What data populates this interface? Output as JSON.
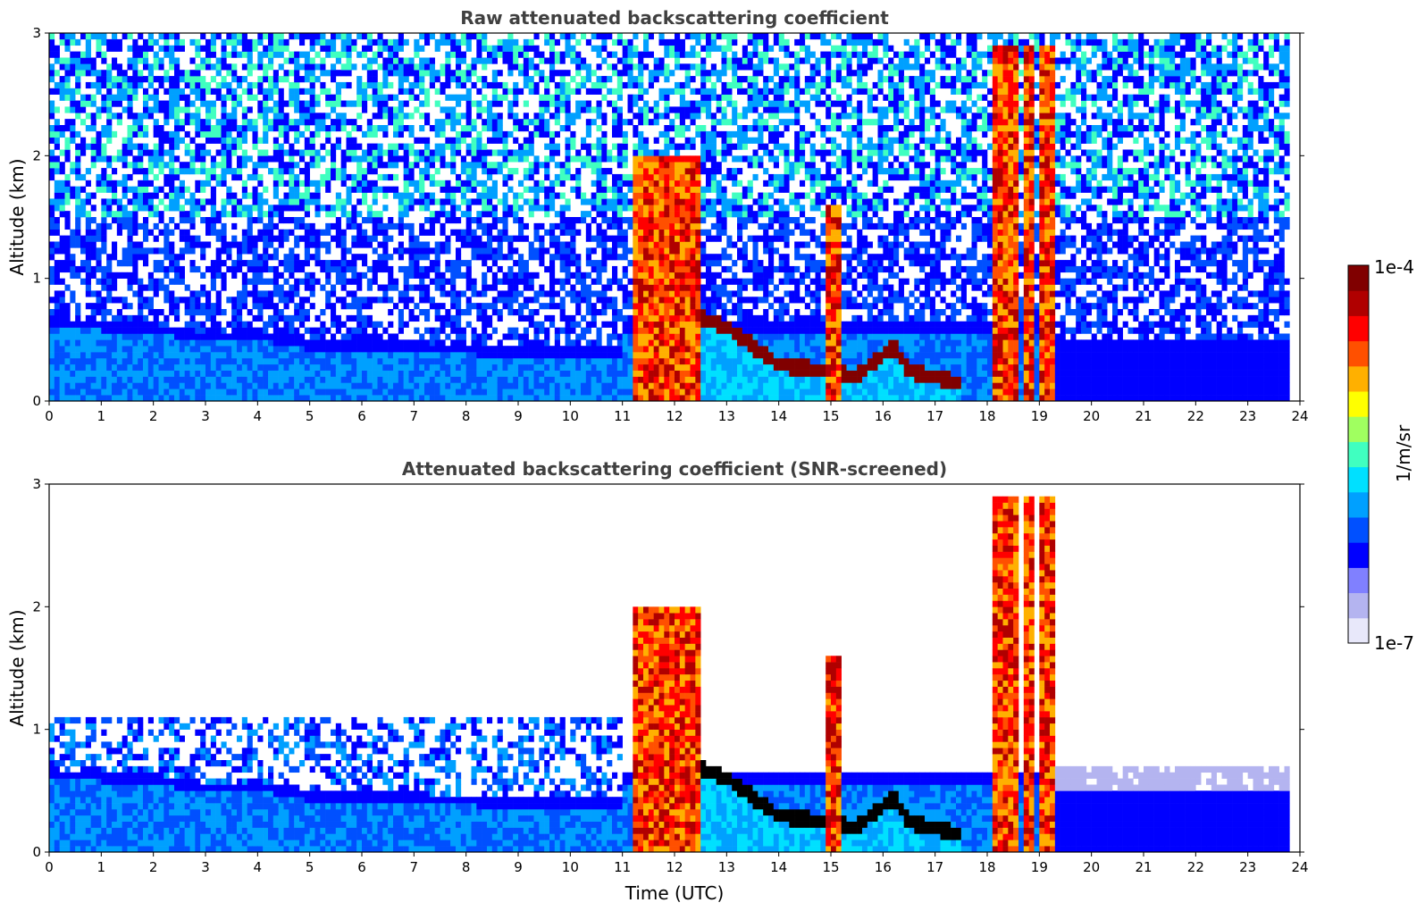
{
  "chart_data": [
    {
      "type": "heatmap",
      "title": "Raw attenuated backscattering coefficient",
      "xlabel": "",
      "ylabel": "Altitude (km)",
      "xlim": [
        0,
        24
      ],
      "ylim": [
        0,
        3
      ],
      "xticks": [
        "0",
        "1",
        "2",
        "3",
        "4",
        "5",
        "6",
        "7",
        "8",
        "9",
        "10",
        "11",
        "12",
        "13",
        "14",
        "15",
        "16",
        "17",
        "18",
        "19",
        "20",
        "21",
        "22",
        "23",
        "24"
      ],
      "yticks": [
        "0",
        "1",
        "2",
        "3"
      ],
      "screened": false
    },
    {
      "type": "heatmap",
      "title": "Attenuated backscattering coefficient (SNR-screened)",
      "xlabel": "Time (UTC)",
      "ylabel": "Altitude (km)",
      "xlim": [
        0,
        24
      ],
      "ylim": [
        0,
        3
      ],
      "xticks": [
        "0",
        "1",
        "2",
        "3",
        "4",
        "5",
        "6",
        "7",
        "8",
        "9",
        "10",
        "11",
        "12",
        "13",
        "14",
        "15",
        "16",
        "17",
        "18",
        "19",
        "20",
        "21",
        "22",
        "23",
        "24"
      ],
      "yticks": [
        "0",
        "1",
        "2",
        "3"
      ],
      "screened": true
    }
  ],
  "colorbar": {
    "max_label": "1e-4",
    "min_label": "1e-7",
    "unit_label": "1/m/sr",
    "colors": [
      "#e8e8fa",
      "#b4b4f0",
      "#8080ff",
      "#0000ff",
      "#0050ff",
      "#00a0ff",
      "#00e0ff",
      "#40ffc0",
      "#a0ff60",
      "#ffff00",
      "#ffb000",
      "#ff5000",
      "#ff0000",
      "#b00000",
      "#800000"
    ]
  },
  "features": {
    "boundary_layer_top_km": [
      [
        0,
        0.6
      ],
      [
        2,
        0.55
      ],
      [
        3,
        0.48
      ],
      [
        4,
        0.5
      ],
      [
        5,
        0.42
      ],
      [
        6,
        0.4
      ],
      [
        7,
        0.4
      ],
      [
        8,
        0.38
      ],
      [
        9,
        0.36
      ],
      [
        10,
        0.35
      ],
      [
        11,
        0.35
      ]
    ],
    "descending_layer_km": [
      [
        12.5,
        0.68
      ],
      [
        13,
        0.6
      ],
      [
        13.5,
        0.45
      ],
      [
        14,
        0.3
      ],
      [
        14.8,
        0.25
      ],
      [
        15.5,
        0.2
      ],
      [
        16.2,
        0.45
      ],
      [
        16.5,
        0.25
      ],
      [
        17.4,
        0.15
      ]
    ],
    "convective_columns_utc": [
      [
        11.2,
        12.5
      ],
      [
        14.9,
        15.2
      ],
      [
        18.1,
        18.6
      ],
      [
        18.7,
        18.9
      ],
      [
        19.0,
        19.25
      ]
    ],
    "data_end_utc": 23.8
  }
}
